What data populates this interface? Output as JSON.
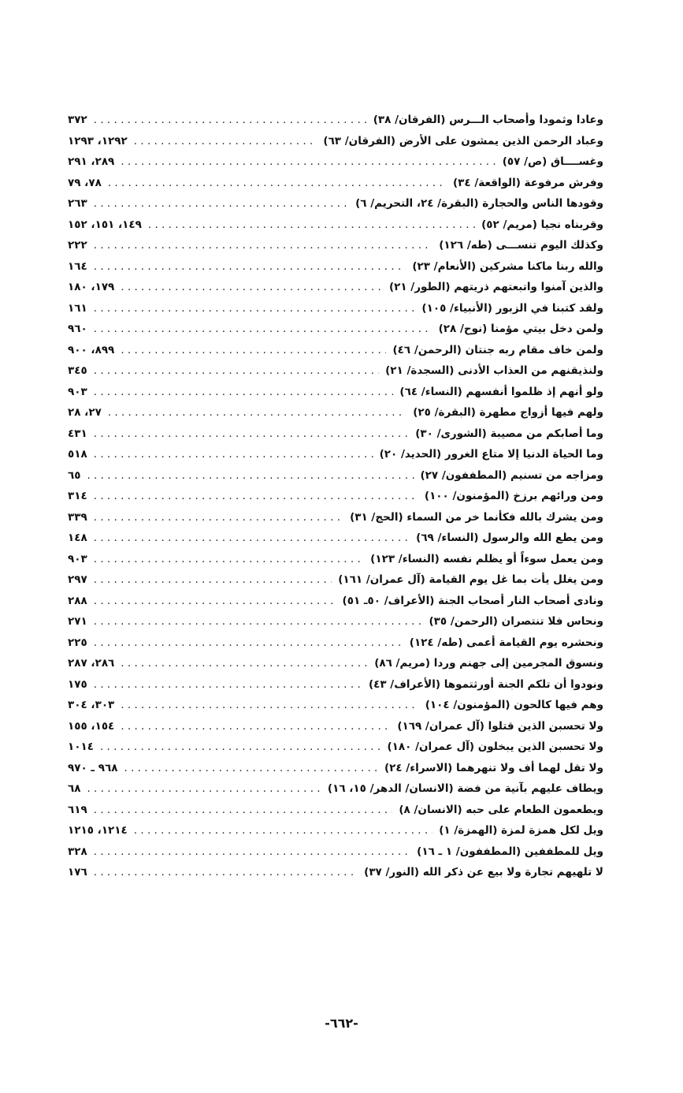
{
  "entries": [
    {
      "text": "وعادا وثمودا وأصحاب الـــرس (الفرقان/ ٣٨)",
      "pages": "٣٧٢"
    },
    {
      "text": "وعباد الرحمن الذين يمشون على الأرض (الفرقان/ ٦٣)",
      "pages": "١٢٩٢، ١٢٩٣"
    },
    {
      "text": "وغســــاق (ص/ ٥٧)",
      "pages": "٢٨٩، ٢٩١"
    },
    {
      "text": "وفرش مرفوعة (الواقعة/ ٣٤)",
      "pages": "٧٨، ٧٩"
    },
    {
      "text": "وقودها الناس والحجارة (البقرة/ ٢٤، التحريم/ ٦)",
      "pages": "٢٦٣"
    },
    {
      "text": "وقربناه نجيا (مريم/ ٥٢)",
      "pages": "١٤٩، ١٥١، ١٥٢"
    },
    {
      "text": "وكذلك اليوم تنســـى (طه/ ١٢٦)",
      "pages": "٢٢٢"
    },
    {
      "text": "والله ربنا ماكنا مشركين (الأنعام/ ٢٣)",
      "pages": "١٦٤"
    },
    {
      "text": "والذين آمنوا واتبعتهم ذريتهم (الطور/ ٢١)",
      "pages": "١٧٩، ١٨٠"
    },
    {
      "text": "ولقد كتبنا في الزبور (الأنبياء/ ١٠٥)",
      "pages": "١٦١"
    },
    {
      "text": "ولمن دخل بيتي مؤمنا (نوح/ ٢٨)",
      "pages": "٩٦٠"
    },
    {
      "text": "ولمن خاف مقام ربه جنتان (الرحمن/ ٤٦)",
      "pages": "٨٩٩، ٩٠٠"
    },
    {
      "text": "ولنذيقنهم من العذاب الأدنى (السجدة/ ٢١)",
      "pages": "٣٤٥"
    },
    {
      "text": "ولو أنهم إذ ظلموا أنفسهم (النساء/ ٦٤)",
      "pages": "٩٠٣"
    },
    {
      "text": "ولهم فيها أزواج مطهرة (البقرة/ ٢٥)",
      "pages": "٢٧، ٢٨"
    },
    {
      "text": "وما أصابكم من مصيبة (الشورى/ ٣٠)",
      "pages": "٤٣١"
    },
    {
      "text": "وما الحياة الدنيا إلا متاع الغرور (الحديد/ ٢٠)",
      "pages": "٥١٨"
    },
    {
      "text": "ومزاجه من تسنيم (المطففون/ ٢٧)",
      "pages": "٦٥"
    },
    {
      "text": "ومن ورائهم برزخ (المؤمنون/ ١٠٠)",
      "pages": "٣١٤"
    },
    {
      "text": "ومن يشرك بالله فكأنما خر من السماء (الحج/ ٣١)",
      "pages": "٣٣٩"
    },
    {
      "text": "ومن يطع الله والرسول (النساء/ ٦٩)",
      "pages": "١٤٨"
    },
    {
      "text": "ومن يعمل سوءاً أو يظلم نفسه (النساء/ ١٢٣)",
      "pages": "٩٠٣"
    },
    {
      "text": "ومن يغلل يأت بما غل يوم القيامة (آل عمران/ ١٦١)",
      "pages": "٢٩٧"
    },
    {
      "text": "ونادى أصحاب النار أصحاب الجنة (الأعراف/ ٥٠ـ ٥١)",
      "pages": "٢٨٨"
    },
    {
      "text": "ونحاس فلا تنتصران (الرحمن/ ٣٥)",
      "pages": "٢٧١"
    },
    {
      "text": "ونحشره يوم القيامة أعمى (طه/ ١٢٤)",
      "pages": "٢٢٥"
    },
    {
      "text": "ونسوق المجرمين إلى جهنم وردا (مريم/ ٨٦)",
      "pages": "٢٨٦، ٢٨٧"
    },
    {
      "text": "ونودوا أن تلكم الجنة أورثتموها (الأعراف/ ٤٣)",
      "pages": "١٧٥"
    },
    {
      "text": "وهم فيها كالحون (المؤمنون/ ١٠٤)",
      "pages": "٣٠٣، ٣٠٤"
    },
    {
      "text": "ولا تحسبن الذين قتلوا (آل عمران/ ١٦٩)",
      "pages": "١٥٤، ١٥٥"
    },
    {
      "text": "ولا تحسبن الذين يبخلون (آل عمران/ ١٨٠)",
      "pages": "١٠١٤"
    },
    {
      "text": "ولا تقل لهما أف ولا تنهرهما (الاسراء/ ٢٤)",
      "pages": "٩٦٨ ـ ٩٧٠"
    },
    {
      "text": "ويطاف عليهم بآنية من فضة (الانسان/ الدهر/ ١٥، ١٦)",
      "pages": "٦٨"
    },
    {
      "text": "ويطعمون الطعام على حبه (الانسان/ ٨)",
      "pages": "٦١٩"
    },
    {
      "text": "ويل لكل همزة لمزة (الهمزة/ ١)",
      "pages": "١٢١٤، ١٢١٥"
    },
    {
      "text": "ويل للمطففين (المطففون/ ١ ـ ١٦)",
      "pages": "٣٢٨"
    },
    {
      "text": "لا تلهيهم تجارة ولا بيع عن ذكر الله (النور/ ٣٧)",
      "pages": "١٧٦"
    }
  ],
  "page_number": "-٦٦٢-"
}
